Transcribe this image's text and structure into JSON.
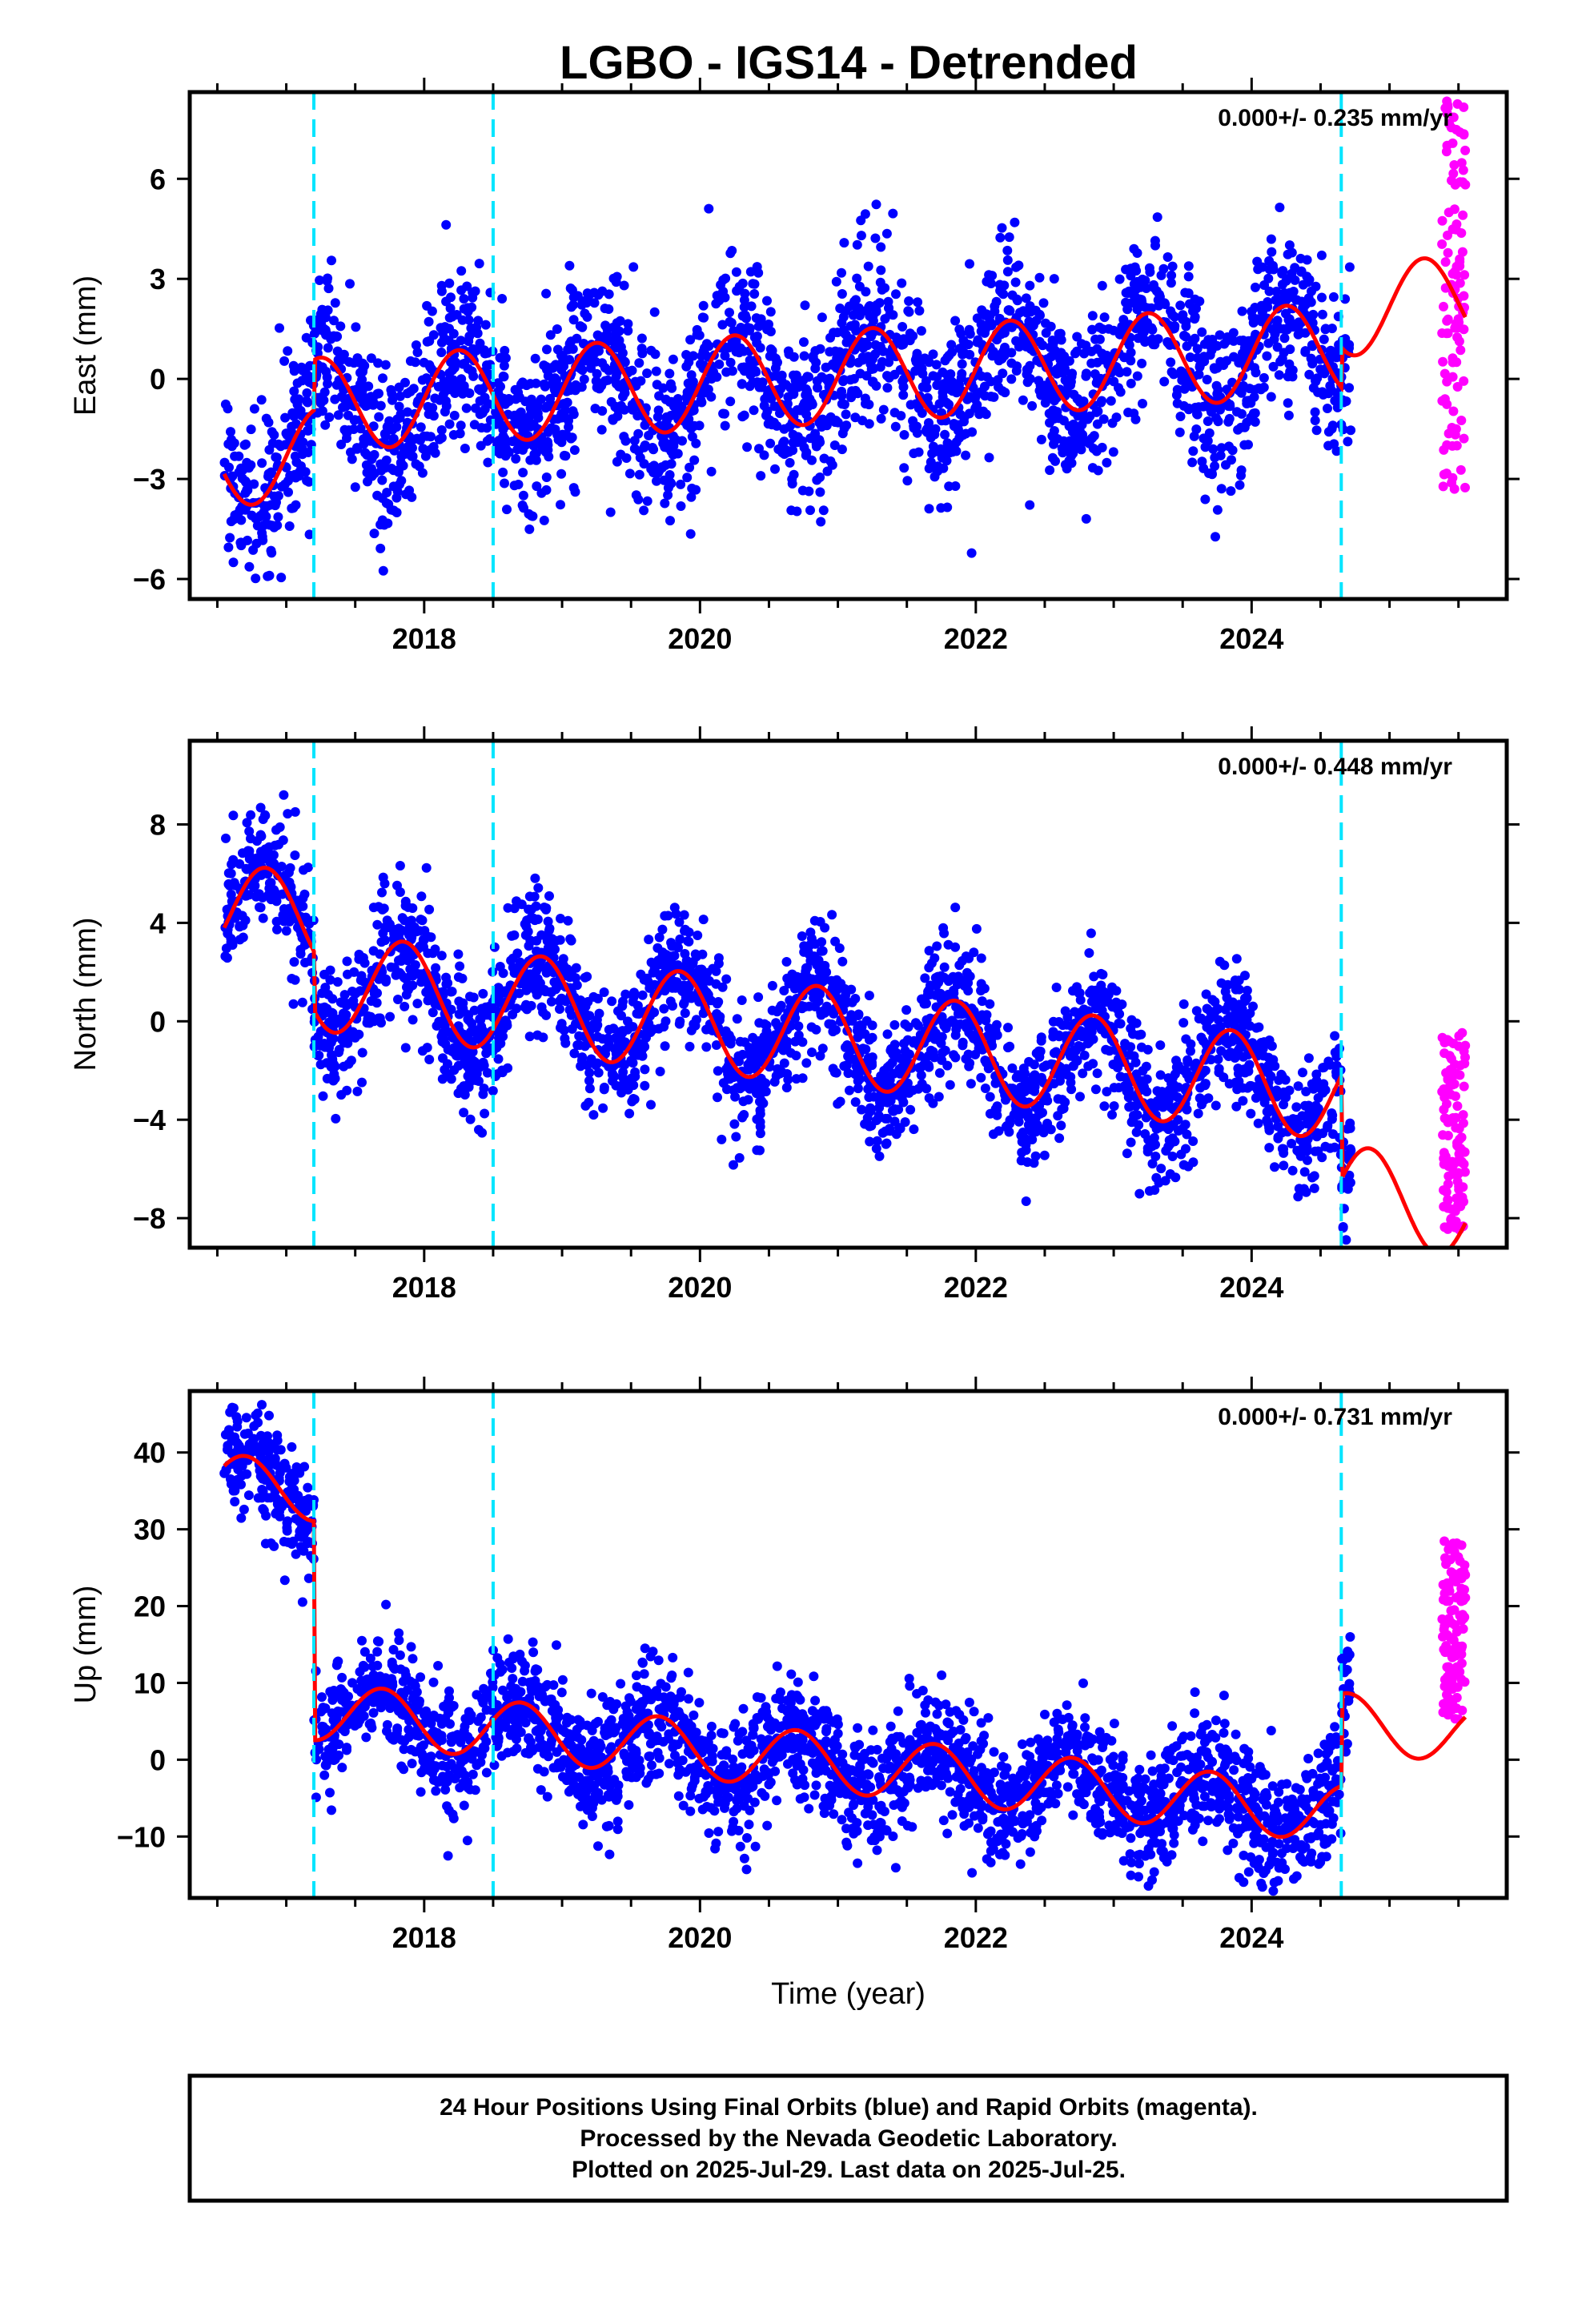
{
  "title": "LGBO - IGS14 - Detrended",
  "colors": {
    "final_orbits": "#0000ff",
    "rapid_orbits": "#ff00ff",
    "model": "#ff0000",
    "events": "#00e5ff",
    "frame": "#000000"
  },
  "footer": {
    "line1": "24 Hour Positions Using Final Orbits (blue) and Rapid Orbits (magenta).",
    "line2": "Processed by the Nevada Geodetic Laboratory.",
    "line3": "Plotted on 2025-Jul-29. Last data on 2025-Jul-25."
  },
  "chart_data": [
    {
      "type": "scatter",
      "panel": "East",
      "ylabel": "East (mm)",
      "xlabel": "",
      "rate_label": "0.000+/- 0.235 mm/yr",
      "xlim": [
        2016.3,
        2025.85
      ],
      "ylim": [
        -6.6,
        8.6
      ],
      "xticks": [
        2018,
        2020,
        2022,
        2024
      ],
      "yticks": [
        -6,
        -3,
        0,
        3,
        6
      ],
      "event_lines_x": [
        2017.2,
        2018.5,
        2024.65
      ],
      "grid": false,
      "legend": "none",
      "series": [
        {
          "role": "model",
          "x_start": 2016.55,
          "x_end": 2025.55,
          "y_start": -1.5,
          "y_end": 0.5,
          "amplitude": 1.4,
          "peak_fraction": 0.25,
          "offsets": [
            {
              "x": 2017.2,
              "dy": 1.5
            },
            {
              "x": 2024.65,
              "dy": 1.2
            }
          ]
        },
        {
          "role": "final_orbits",
          "x_start": 2016.55,
          "x_end": 2024.72,
          "scatter_sd": 1.25,
          "count": 2600
        },
        {
          "role": "rapid_orbits",
          "x_start": 2025.38,
          "x_end": 2025.55,
          "y_min": -3.7,
          "y_max": 8.4,
          "count": 110
        }
      ]
    },
    {
      "type": "scatter",
      "panel": "North",
      "ylabel": "North (mm)",
      "xlabel": "",
      "rate_label": "0.000+/- 0.448 mm/yr",
      "xlim": [
        2016.3,
        2025.85
      ],
      "ylim": [
        -9.2,
        11.4
      ],
      "xticks": [
        2018,
        2020,
        2022,
        2024
      ],
      "yticks": [
        -8,
        -4,
        0,
        4,
        8
      ],
      "event_lines_x": [
        2017.2,
        2018.5,
        2024.65
      ],
      "grid": false,
      "legend": "none",
      "series": [
        {
          "role": "model",
          "x_start": 2016.55,
          "x_end": 2025.55,
          "y_start": 0.5,
          "y_end": -4.9,
          "amplitude": 2.0,
          "peak_fraction": 0.85,
          "offsets": [
            {
              "x": 2017.2,
              "dy": -2.4
            },
            {
              "x": 2024.65,
              "dy": -4.2
            }
          ]
        },
        {
          "role": "final_orbits",
          "x_start": 2016.55,
          "x_end": 2024.72,
          "scatter_sd": 1.3,
          "count": 2600
        },
        {
          "role": "rapid_orbits",
          "x_start": 2025.38,
          "x_end": 2025.55,
          "y_min": -8.5,
          "y_max": -0.3,
          "count": 110
        }
      ]
    },
    {
      "type": "scatter",
      "panel": "Up",
      "ylabel": "Up (mm)",
      "xlabel": "Time (year)",
      "rate_label": "0.000+/- 0.731 mm/yr",
      "xlim": [
        2016.3,
        2025.85
      ],
      "ylim": [
        -18,
        48
      ],
      "xticks": [
        2018,
        2020,
        2022,
        2024
      ],
      "yticks": [
        -10,
        0,
        10,
        20,
        30,
        40
      ],
      "event_lines_x": [
        2017.2,
        2018.5,
        2024.65
      ],
      "grid": false,
      "legend": "none",
      "series": [
        {
          "role": "model",
          "x_start": 2016.55,
          "x_end": 2025.55,
          "y_start": 30,
          "y_end": 13.8,
          "amplitude": 3.8,
          "peak_fraction": 0.7,
          "offsets": [
            {
              "x": 2017.2,
              "dy": -28.5
            },
            {
              "x": 2024.65,
              "dy": 12.0
            }
          ]
        },
        {
          "role": "final_orbits",
          "x_start": 2016.55,
          "x_end": 2024.72,
          "scatter_sd": 3.9,
          "count": 2600
        },
        {
          "role": "rapid_orbits",
          "x_start": 2025.38,
          "x_end": 2025.55,
          "y_min": 5,
          "y_max": 28.5,
          "count": 110
        }
      ]
    }
  ]
}
